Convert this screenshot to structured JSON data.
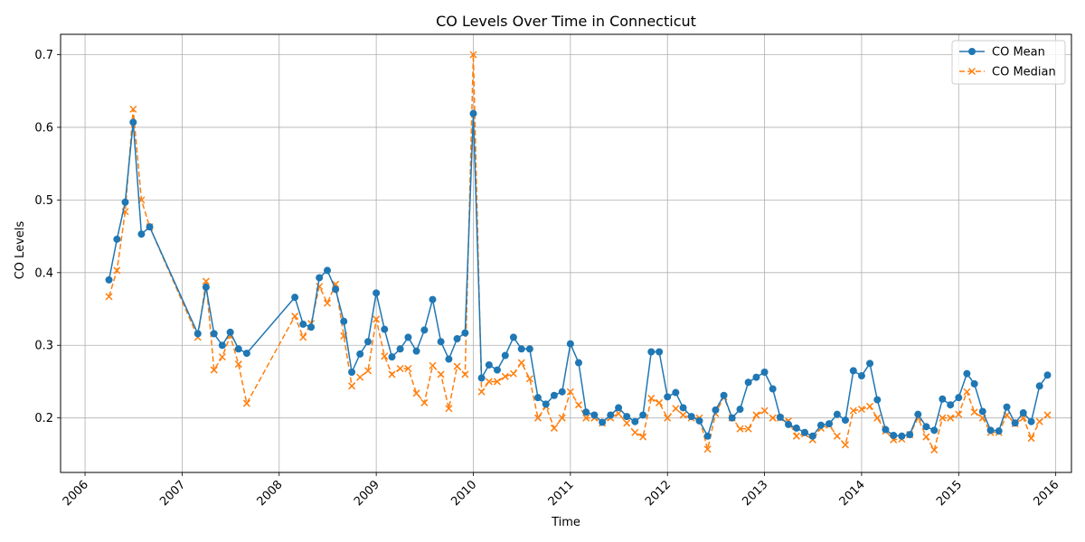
{
  "chart_data": {
    "type": "line",
    "title": "CO Levels Over Time in Connecticut",
    "xlabel": "Time",
    "ylabel": "CO Levels",
    "xlim": [
      "2005-10-01",
      "2016-03-01"
    ],
    "ylim": [
      0.125,
      0.728
    ],
    "x_ticks": [
      "2006",
      "2007",
      "2008",
      "2009",
      "2010",
      "2011",
      "2012",
      "2013",
      "2014",
      "2015",
      "2016"
    ],
    "y_ticks": [
      0.2,
      0.3,
      0.4,
      0.5,
      0.6,
      0.7
    ],
    "grid": true,
    "legend_position": "top-right",
    "x": [
      "2006-04",
      "2006-05",
      "2006-06",
      "2006-07",
      "2006-08",
      "2006-09",
      "2007-03",
      "2007-04",
      "2007-05",
      "2007-06",
      "2007-07",
      "2007-08",
      "2007-09",
      "2008-03",
      "2008-04",
      "2008-05",
      "2008-06",
      "2008-07",
      "2008-08",
      "2008-09",
      "2008-10",
      "2008-11",
      "2008-12",
      "2009-01",
      "2009-02",
      "2009-03",
      "2009-04",
      "2009-05",
      "2009-06",
      "2009-07",
      "2009-08",
      "2009-09",
      "2009-10",
      "2009-11",
      "2009-12",
      "2010-01",
      "2010-02",
      "2010-03",
      "2010-04",
      "2010-05",
      "2010-06",
      "2010-07",
      "2010-08",
      "2010-09",
      "2010-10",
      "2010-11",
      "2010-12",
      "2011-01",
      "2011-02",
      "2011-03",
      "2011-04",
      "2011-05",
      "2011-06",
      "2011-07",
      "2011-08",
      "2011-09",
      "2011-10",
      "2011-11",
      "2011-12",
      "2012-01",
      "2012-02",
      "2012-03",
      "2012-04",
      "2012-05",
      "2012-06",
      "2012-07",
      "2012-08",
      "2012-09",
      "2012-10",
      "2012-11",
      "2012-12",
      "2013-01",
      "2013-02",
      "2013-03",
      "2013-04",
      "2013-05",
      "2013-06",
      "2013-07",
      "2013-08",
      "2013-09",
      "2013-10",
      "2013-11",
      "2013-12",
      "2014-01",
      "2014-02",
      "2014-03",
      "2014-04",
      "2014-05",
      "2014-06",
      "2014-07",
      "2014-08",
      "2014-09",
      "2014-10",
      "2014-11",
      "2014-12",
      "2015-01",
      "2015-02",
      "2015-03",
      "2015-04",
      "2015-05",
      "2015-06",
      "2015-07",
      "2015-08",
      "2015-09",
      "2015-10",
      "2015-11",
      "2015-12"
    ],
    "series": [
      {
        "name": "CO Mean",
        "color": "#1f77b4",
        "style": "solid",
        "marker": "circle",
        "values": [
          0.39,
          0.446,
          0.497,
          0.607,
          0.453,
          0.463,
          0.316,
          0.38,
          0.316,
          0.3,
          0.318,
          0.295,
          0.289,
          0.366,
          0.329,
          0.325,
          0.393,
          0.403,
          0.377,
          0.333,
          0.263,
          0.288,
          0.305,
          0.372,
          0.322,
          0.284,
          0.295,
          0.311,
          0.292,
          0.321,
          0.363,
          0.305,
          0.281,
          0.309,
          0.317,
          0.619,
          0.255,
          0.273,
          0.266,
          0.286,
          0.311,
          0.295,
          0.295,
          0.228,
          0.219,
          0.231,
          0.236,
          0.302,
          0.276,
          0.208,
          0.204,
          0.194,
          0.204,
          0.214,
          0.202,
          0.195,
          0.204,
          0.291,
          0.291,
          0.229,
          0.235,
          0.214,
          0.202,
          0.196,
          0.175,
          0.211,
          0.231,
          0.2,
          0.212,
          0.249,
          0.256,
          0.263,
          0.24,
          0.201,
          0.191,
          0.186,
          0.18,
          0.175,
          0.19,
          0.192,
          0.205,
          0.197,
          0.265,
          0.258,
          0.275,
          0.225,
          0.184,
          0.176,
          0.175,
          0.177,
          0.205,
          0.188,
          0.183,
          0.226,
          0.218,
          0.228,
          0.261,
          0.247,
          0.209,
          0.183,
          0.182,
          0.215,
          0.193,
          0.207,
          0.195,
          0.244,
          0.259
        ]
      },
      {
        "name": "CO Median",
        "color": "#ff7f0e",
        "style": "dashed",
        "marker": "x",
        "values": [
          0.367,
          0.403,
          0.484,
          0.625,
          0.5,
          0.463,
          0.311,
          0.388,
          0.266,
          0.284,
          0.313,
          0.274,
          0.22,
          0.34,
          0.311,
          0.33,
          0.381,
          0.358,
          0.384,
          0.313,
          0.244,
          0.256,
          0.265,
          0.336,
          0.285,
          0.26,
          0.268,
          0.268,
          0.234,
          0.221,
          0.272,
          0.26,
          0.213,
          0.271,
          0.26,
          0.7,
          0.236,
          0.25,
          0.25,
          0.257,
          0.261,
          0.276,
          0.254,
          0.2,
          0.216,
          0.186,
          0.2,
          0.236,
          0.218,
          0.2,
          0.2,
          0.193,
          0.2,
          0.206,
          0.193,
          0.18,
          0.174,
          0.227,
          0.221,
          0.2,
          0.213,
          0.204,
          0.2,
          0.2,
          0.157,
          0.206,
          0.229,
          0.2,
          0.185,
          0.185,
          0.204,
          0.21,
          0.2,
          0.2,
          0.196,
          0.175,
          0.178,
          0.17,
          0.186,
          0.19,
          0.175,
          0.163,
          0.21,
          0.212,
          0.216,
          0.2,
          0.182,
          0.17,
          0.171,
          0.177,
          0.2,
          0.174,
          0.156,
          0.2,
          0.2,
          0.205,
          0.236,
          0.208,
          0.2,
          0.18,
          0.18,
          0.204,
          0.192,
          0.2,
          0.172,
          0.195,
          0.204
        ]
      }
    ]
  }
}
